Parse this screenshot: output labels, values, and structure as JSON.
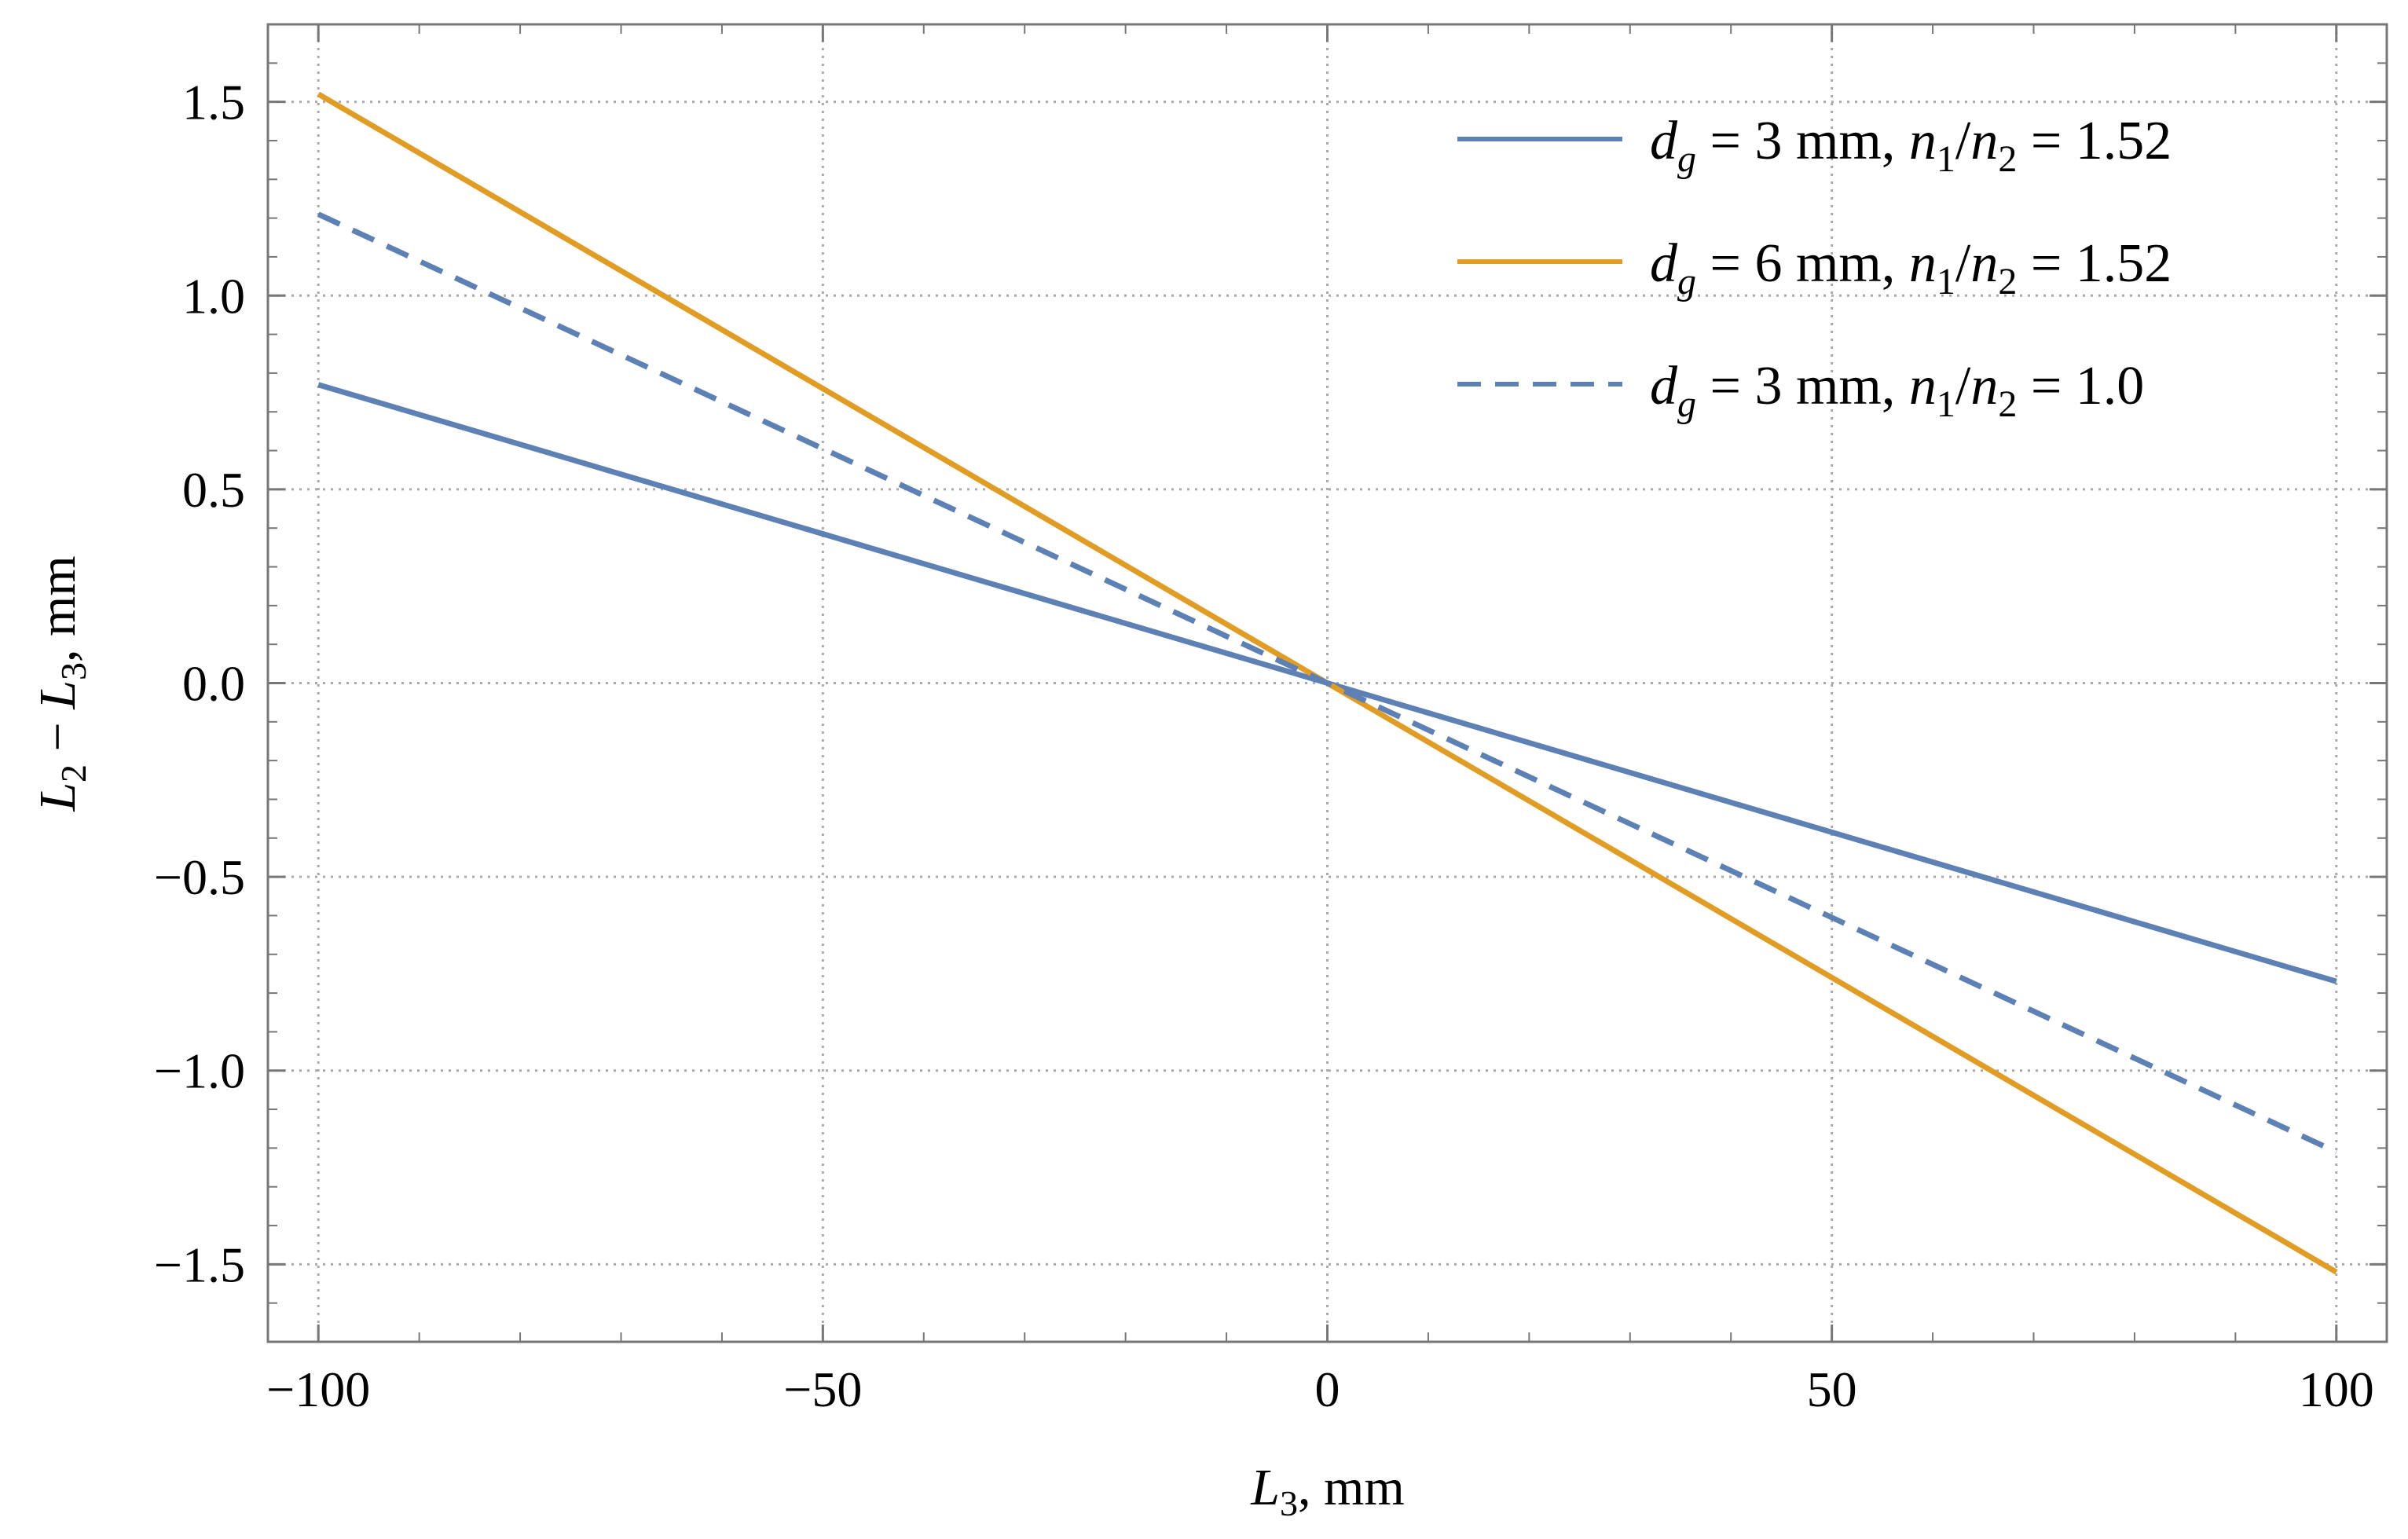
{
  "chart_data": {
    "type": "line",
    "title": "",
    "xlabel": {
      "var": "L",
      "sub": "3",
      "unit": ", mm"
    },
    "ylabel": {
      "var1": "L",
      "sub1": "2",
      "op": " − ",
      "var2": "L",
      "sub2": "3",
      "unit": ", mm"
    },
    "xlim": [
      -105,
      105
    ],
    "ylim": [
      -1.7,
      1.7
    ],
    "xticks": [
      {
        "value": -100,
        "label": "−100"
      },
      {
        "value": -50,
        "label": "−50"
      },
      {
        "value": 0,
        "label": "0"
      },
      {
        "value": 50,
        "label": "50"
      },
      {
        "value": 100,
        "label": "100"
      }
    ],
    "yticks": [
      {
        "value": 1.5,
        "label": "1.5"
      },
      {
        "value": 1.0,
        "label": "1.0"
      },
      {
        "value": 0.5,
        "label": "0.5"
      },
      {
        "value": 0.0,
        "label": "0.0"
      },
      {
        "value": -0.5,
        "label": "−0.5"
      },
      {
        "value": -1.0,
        "label": "−1.0"
      },
      {
        "value": -1.5,
        "label": "−1.5"
      }
    ],
    "grid": true,
    "legend_position": "top-right",
    "series": [
      {
        "name": "dg = 3 mm, n1/n2 = 1.52",
        "legend": {
          "d": "d",
          "dsub": "g",
          "mid": " = 3 mm, ",
          "n1": "n",
          "n1sub": "1",
          "slash": "/",
          "n2": "n",
          "n2sub": "2",
          "tail": " = 1.52"
        },
        "color": "#5E81B5",
        "dashed": false,
        "x": [
          -100,
          100
        ],
        "y": [
          0.77,
          -0.77
        ]
      },
      {
        "name": "dg = 6 mm, n1/n2 = 1.52",
        "legend": {
          "d": "d",
          "dsub": "g",
          "mid": " = 6 mm, ",
          "n1": "n",
          "n1sub": "1",
          "slash": "/",
          "n2": "n",
          "n2sub": "2",
          "tail": " = 1.52"
        },
        "color": "#E19C24",
        "dashed": false,
        "x": [
          -100,
          100
        ],
        "y": [
          1.52,
          -1.52
        ]
      },
      {
        "name": "dg = 3 mm, n1/n2 = 1.0",
        "legend": {
          "d": "d",
          "dsub": "g",
          "mid": " = 3 mm, ",
          "n1": "n",
          "n1sub": "1",
          "slash": "/",
          "n2": "n",
          "n2sub": "2",
          "tail": " = 1.0"
        },
        "color": "#5E81B5",
        "dashed": true,
        "x": [
          -100,
          100
        ],
        "y": [
          1.21,
          -1.21
        ]
      }
    ]
  }
}
